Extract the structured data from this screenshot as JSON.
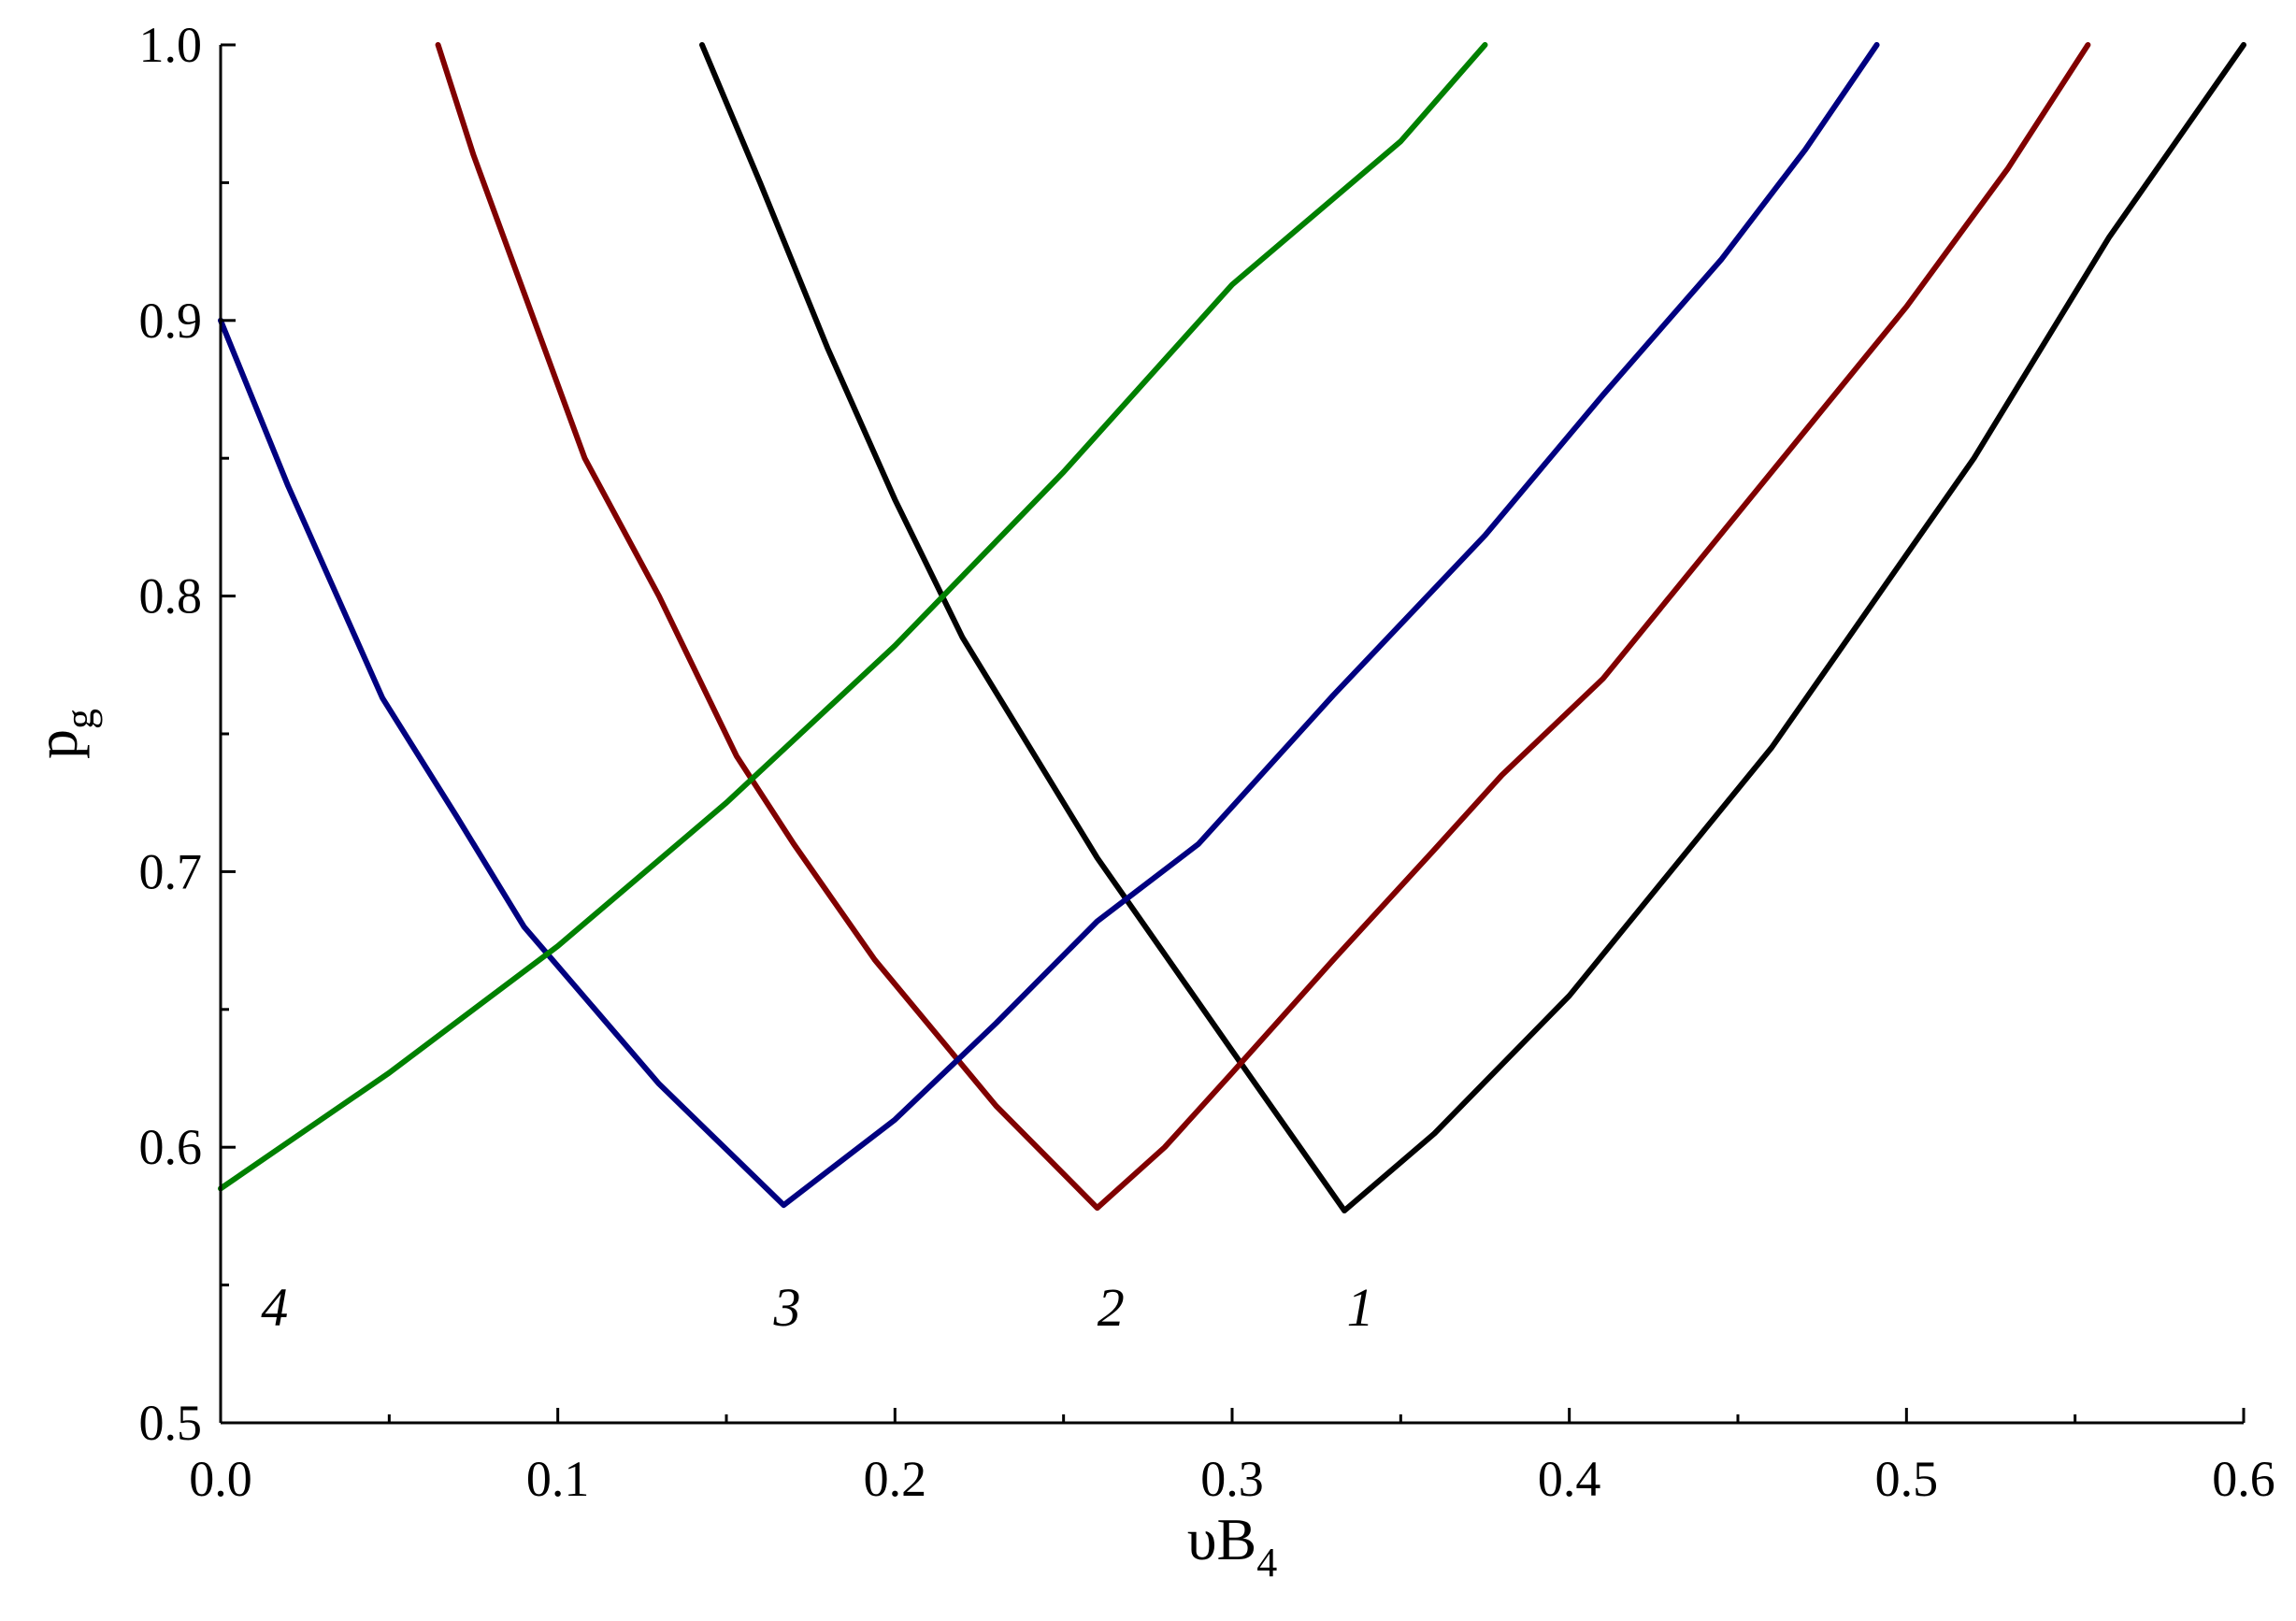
{
  "chart_data": {
    "type": "line",
    "xlabel": {
      "main": "υB",
      "sub": "4"
    },
    "ylabel": {
      "main": "p",
      "sub": "g"
    },
    "xlim": [
      0.0,
      0.6
    ],
    "ylim": [
      0.5,
      1.0
    ],
    "x_ticks": [
      "0.0",
      "0.1",
      "0.2",
      "0.3",
      "0.4",
      "0.5",
      "0.6"
    ],
    "y_ticks": [
      "0.5",
      "0.6",
      "0.7",
      "0.8",
      "0.9",
      "1.0"
    ],
    "grid": false,
    "series": [
      {
        "name": "1",
        "color": "#000000",
        "points": [
          [
            0.1428,
            1.0
          ],
          [
            0.16,
            0.95
          ],
          [
            0.18,
            0.89
          ],
          [
            0.2,
            0.835
          ],
          [
            0.22,
            0.785
          ],
          [
            0.24,
            0.745
          ],
          [
            0.26,
            0.705
          ],
          [
            0.28,
            0.67
          ],
          [
            0.3,
            0.635
          ],
          [
            0.3333,
            0.577
          ],
          [
            0.36,
            0.605
          ],
          [
            0.38,
            0.63
          ],
          [
            0.4,
            0.655
          ],
          [
            0.42,
            0.685
          ],
          [
            0.44,
            0.715
          ],
          [
            0.46,
            0.745
          ],
          [
            0.48,
            0.78
          ],
          [
            0.5,
            0.815
          ],
          [
            0.52,
            0.85
          ],
          [
            0.54,
            0.89
          ],
          [
            0.56,
            0.93
          ],
          [
            0.58,
            0.965
          ],
          [
            0.6,
            1.0
          ]
        ]
      },
      {
        "name": "2",
        "color": "#800000",
        "points": [
          [
            0.0645,
            1.0
          ],
          [
            0.075,
            0.96
          ],
          [
            0.09,
            0.91
          ],
          [
            0.108,
            0.85
          ],
          [
            0.13,
            0.8
          ],
          [
            0.153,
            0.742
          ],
          [
            0.17,
            0.71
          ],
          [
            0.194,
            0.668
          ],
          [
            0.23,
            0.615
          ],
          [
            0.26,
            0.578
          ],
          [
            0.28,
            0.6
          ],
          [
            0.3,
            0.627
          ],
          [
            0.33,
            0.668
          ],
          [
            0.36,
            0.708
          ],
          [
            0.38,
            0.735
          ],
          [
            0.41,
            0.77
          ],
          [
            0.44,
            0.815
          ],
          [
            0.47,
            0.86
          ],
          [
            0.5,
            0.905
          ],
          [
            0.53,
            0.955
          ],
          [
            0.5538,
            1.0
          ]
        ]
      },
      {
        "name": "3",
        "color": "#000080",
        "points": [
          [
            0.0,
            0.9
          ],
          [
            0.02,
            0.84
          ],
          [
            0.048,
            0.763
          ],
          [
            0.07,
            0.72
          ],
          [
            0.09,
            0.68
          ],
          [
            0.13,
            0.623
          ],
          [
            0.167,
            0.579
          ],
          [
            0.2,
            0.61
          ],
          [
            0.23,
            0.645
          ],
          [
            0.26,
            0.682
          ],
          [
            0.29,
            0.71
          ],
          [
            0.33,
            0.764
          ],
          [
            0.375,
            0.822
          ],
          [
            0.41,
            0.873
          ],
          [
            0.445,
            0.922
          ],
          [
            0.47,
            0.962
          ],
          [
            0.4912,
            1.0
          ]
        ]
      },
      {
        "name": "4",
        "color": "#008000",
        "points": [
          [
            0.0,
            0.585
          ],
          [
            0.05,
            0.627
          ],
          [
            0.1,
            0.673
          ],
          [
            0.15,
            0.725
          ],
          [
            0.2,
            0.782
          ],
          [
            0.25,
            0.845
          ],
          [
            0.3,
            0.913
          ],
          [
            0.35,
            0.965
          ],
          [
            0.375,
            1.0
          ]
        ]
      }
    ],
    "curve_labels": [
      {
        "text": "4",
        "x": 0.012,
        "y": 0.542
      },
      {
        "text": "3",
        "x": 0.164,
        "y": 0.542
      },
      {
        "text": "2",
        "x": 0.26,
        "y": 0.542
      },
      {
        "text": "1",
        "x": 0.334,
        "y": 0.542
      }
    ]
  }
}
